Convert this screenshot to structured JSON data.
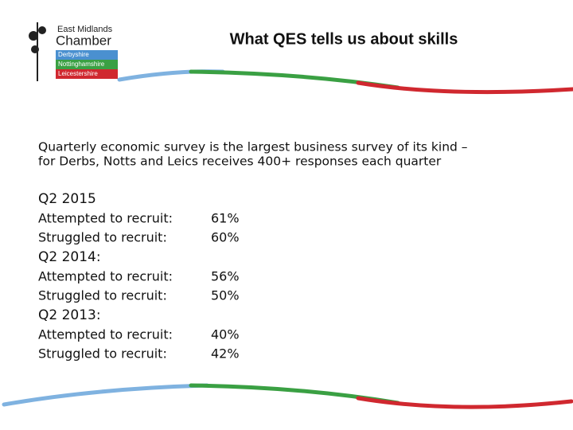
{
  "logo": {
    "line1": "East Midlands",
    "line2": "Chamber",
    "bands": [
      "Derbyshire",
      "Nottinghamshire",
      "Leicestershire"
    ]
  },
  "title": "What QES tells us about skills",
  "intro": [
    "Quarterly economic survey is the largest business survey of its kind –",
    "for Derbs, Notts and Leics receives 400+ responses each quarter"
  ],
  "sections": [
    {
      "heading": "Q2 2015",
      "rows": [
        [
          "Attempted to recruit:",
          "61%"
        ],
        [
          "Struggled to recruit:",
          "60%"
        ]
      ]
    },
    {
      "heading": "Q2 2014:",
      "rows": [
        [
          "Attempted to recruit:",
          "56%"
        ],
        [
          "Struggled to recruit:",
          "50%"
        ]
      ]
    },
    {
      "heading": "Q2 2013:",
      "rows": [
        [
          "Attempted to recruit:",
          "40%"
        ],
        [
          "Struggled to recruit:",
          "42%"
        ]
      ]
    }
  ]
}
